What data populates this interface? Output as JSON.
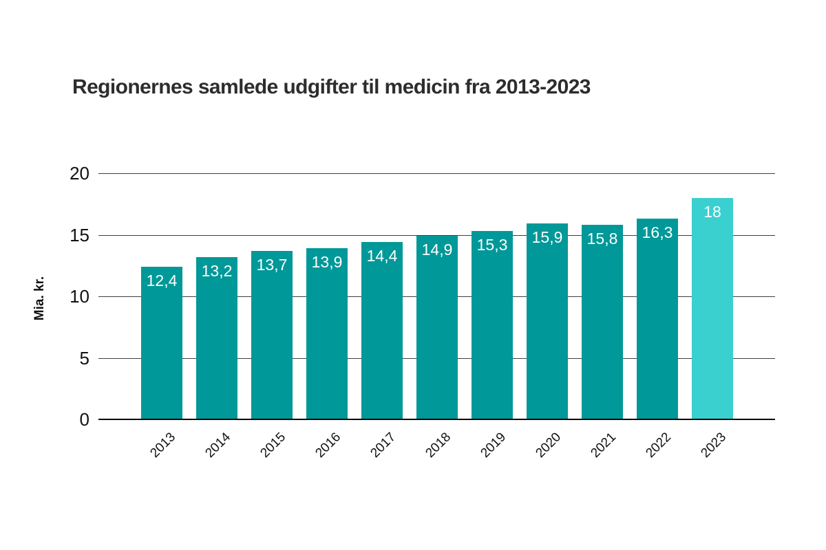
{
  "page": {
    "background": "#ffffff"
  },
  "chart_data": {
    "type": "bar",
    "title": "Regionernes samlede udgifter til medicin fra 2013-2023",
    "xlabel": "",
    "ylabel": "Mia. kr.",
    "categories": [
      "2013",
      "2014",
      "2015",
      "2016",
      "2017",
      "2018",
      "2019",
      "2020",
      "2021",
      "2022",
      "2023"
    ],
    "values": [
      12.4,
      13.2,
      13.7,
      13.9,
      14.4,
      14.9,
      15.3,
      15.9,
      15.8,
      16.3,
      18
    ],
    "value_labels": [
      "12,4",
      "13,2",
      "13,7",
      "13,9",
      "14,4",
      "14,9",
      "15,3",
      "15,9",
      "15,8",
      "16,3",
      "18"
    ],
    "ylim": [
      0,
      20
    ],
    "yticks": [
      0,
      5,
      10,
      15,
      20
    ],
    "grid": true,
    "legend_position": "none",
    "highlight_index": 10,
    "colors": {
      "bar": "#009898",
      "highlight_bar": "#3bd0d0",
      "bar_label": "#ffffff",
      "gridline": "#3d3d3d",
      "axis_line": "#000000",
      "title": "#2d2d2d",
      "tick_label": "#111111"
    }
  }
}
